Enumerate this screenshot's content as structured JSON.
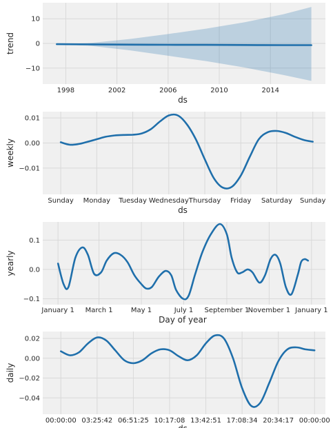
{
  "chart_data": [
    {
      "type": "line",
      "ylabel": "trend",
      "xlabel": "ds",
      "x_ticks": [
        "1998",
        "2002",
        "2006",
        "2010",
        "2014"
      ],
      "x_tick_values": [
        1998,
        2002,
        2006,
        2010,
        2014
      ],
      "xlim": [
        1996.2,
        2018.3
      ],
      "y_ticks": [
        "10",
        "0",
        "−10"
      ],
      "y_tick_values": [
        10,
        0,
        -10
      ],
      "ylim": [
        -16.5,
        16.5
      ],
      "grid": true,
      "x": [
        1997.3,
        2000,
        2003,
        2006,
        2009,
        2012,
        2015,
        2017.2
      ],
      "values": [
        -0.3,
        -0.4,
        -0.5,
        -0.55,
        -0.6,
        -0.65,
        -0.7,
        -0.7
      ],
      "band_upper": [
        -0.3,
        0.2,
        1.8,
        3.8,
        6.0,
        8.6,
        11.8,
        14.8
      ],
      "band_lower": [
        -0.3,
        -1.0,
        -2.8,
        -5.0,
        -7.2,
        -9.8,
        -12.8,
        -15.2
      ]
    },
    {
      "type": "line",
      "ylabel": "weekly",
      "xlabel": "ds",
      "x_ticks": [
        "Sunday",
        "Monday",
        "Tuesday",
        "Wednesday",
        "Thursday",
        "Friday",
        "Saturday",
        "Sunday"
      ],
      "x_tick_values": [
        0,
        1,
        2,
        3,
        4,
        5,
        6,
        7
      ],
      "xlim": [
        -0.5,
        7.35
      ],
      "y_ticks": [
        "0.01",
        "0.00",
        "−0.01"
      ],
      "y_tick_values": [
        0.01,
        0.0,
        -0.01
      ],
      "ylim": [
        -0.0205,
        0.0125
      ],
      "grid": true,
      "x": [
        0,
        0.25,
        0.5,
        0.75,
        1.0,
        1.25,
        1.5,
        1.75,
        2.0,
        2.25,
        2.5,
        2.75,
        3.0,
        3.25,
        3.5,
        3.75,
        4.0,
        4.25,
        4.5,
        4.75,
        5.0,
        5.25,
        5.5,
        5.75,
        6.0,
        6.25,
        6.5,
        6.75,
        7.0
      ],
      "values": [
        0.0003,
        -0.0007,
        -0.0004,
        0.0005,
        0.0015,
        0.0025,
        0.003,
        0.0032,
        0.0033,
        0.0038,
        0.0055,
        0.0085,
        0.011,
        0.011,
        0.0075,
        0.0015,
        -0.0065,
        -0.014,
        -0.0178,
        -0.0175,
        -0.013,
        -0.0055,
        0.0015,
        0.0043,
        0.0048,
        0.004,
        0.0025,
        0.0012,
        0.0005
      ]
    },
    {
      "type": "line",
      "ylabel": "yearly",
      "xlabel": "Day of year",
      "x_ticks": [
        "January 1",
        "March 1",
        "May 1",
        "July 1",
        "September 1",
        "November 1",
        "January 1"
      ],
      "x_tick_values": [
        0,
        59,
        120,
        181,
        243,
        304,
        365
      ],
      "xlim": [
        -22,
        385
      ],
      "y_ticks": [
        "0.1",
        "0.0",
        "−0.1"
      ],
      "y_tick_values": [
        0.1,
        0.0,
        -0.1
      ],
      "ylim": [
        -0.12,
        0.162
      ],
      "grid": true,
      "x": [
        0,
        8,
        15,
        25,
        35,
        43,
        52,
        62,
        70,
        80,
        90,
        100,
        110,
        120,
        127,
        135,
        145,
        155,
        163,
        170,
        180,
        188,
        197,
        208,
        220,
        233,
        243,
        250,
        258,
        265,
        273,
        280,
        290,
        298,
        306,
        313,
        320,
        328,
        336,
        345,
        350,
        355,
        360
      ],
      "values": [
        0.02,
        -0.05,
        -0.06,
        0.04,
        0.075,
        0.05,
        -0.015,
        -0.01,
        0.03,
        0.055,
        0.05,
        0.025,
        -0.02,
        -0.05,
        -0.065,
        -0.06,
        -0.025,
        -0.005,
        -0.02,
        -0.07,
        -0.1,
        -0.09,
        -0.02,
        0.06,
        0.12,
        0.155,
        0.12,
        0.04,
        -0.01,
        -0.01,
        0.0,
        -0.01,
        -0.045,
        -0.02,
        0.035,
        0.05,
        0.02,
        -0.06,
        -0.085,
        -0.02,
        0.025,
        0.035,
        0.03
      ]
    },
    {
      "type": "line",
      "ylabel": "daily",
      "xlabel": "ds",
      "x_ticks": [
        "00:00:00",
        "03:25:42",
        "06:51:25",
        "10:17:08",
        "13:42:51",
        "17:08:34",
        "20:34:17",
        "00:00:00"
      ],
      "x_tick_values": [
        0,
        1,
        2,
        3,
        4,
        5,
        6,
        7
      ],
      "xlim": [
        -0.5,
        7.3
      ],
      "y_ticks": [
        "0.02",
        "0.00",
        "−0.02",
        "−0.04"
      ],
      "y_tick_values": [
        0.02,
        0.0,
        -0.02,
        -0.04
      ],
      "ylim": [
        -0.0565,
        0.027
      ],
      "grid": true,
      "x": [
        0,
        0.25,
        0.5,
        0.75,
        1.0,
        1.25,
        1.5,
        1.75,
        2.0,
        2.25,
        2.5,
        2.75,
        3.0,
        3.25,
        3.5,
        3.75,
        4.0,
        4.25,
        4.5,
        4.75,
        5.0,
        5.25,
        5.5,
        5.75,
        6.0,
        6.25,
        6.5,
        6.75,
        7.0
      ],
      "values": [
        0.007,
        0.003,
        0.006,
        0.015,
        0.021,
        0.018,
        0.008,
        -0.002,
        -0.005,
        -0.002,
        0.005,
        0.009,
        0.008,
        0.002,
        -0.002,
        0.003,
        0.015,
        0.023,
        0.02,
        0.0,
        -0.03,
        -0.048,
        -0.045,
        -0.025,
        -0.003,
        0.009,
        0.011,
        0.009,
        0.008
      ]
    }
  ]
}
